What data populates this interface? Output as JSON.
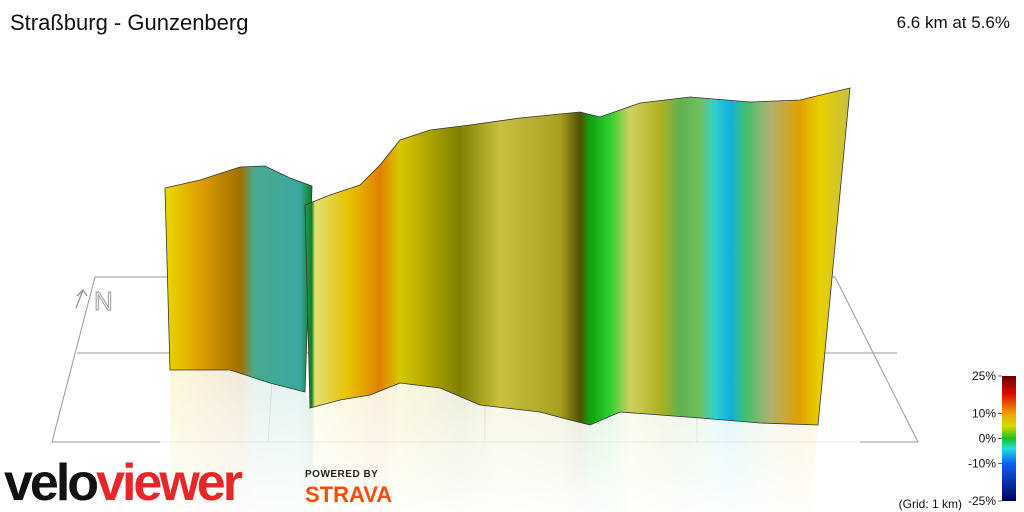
{
  "header": {
    "title": "Straßburg - Gunzenberg",
    "summary": "6.6 km at 5.6%"
  },
  "compass": "N",
  "legend": {
    "ticks": [
      {
        "value": 25,
        "label": "25%"
      },
      {
        "value": 10,
        "label": "10%"
      },
      {
        "value": 0,
        "label": "0%"
      },
      {
        "value": -10,
        "label": "-10%"
      },
      {
        "value": -25,
        "label": "-25%"
      }
    ],
    "grid_note": "(Grid: 1 km)"
  },
  "branding": {
    "logo_part1": "velo",
    "logo_part2": "viewer",
    "powered_by": "POWERED BY",
    "partner": "STRAVA"
  }
}
